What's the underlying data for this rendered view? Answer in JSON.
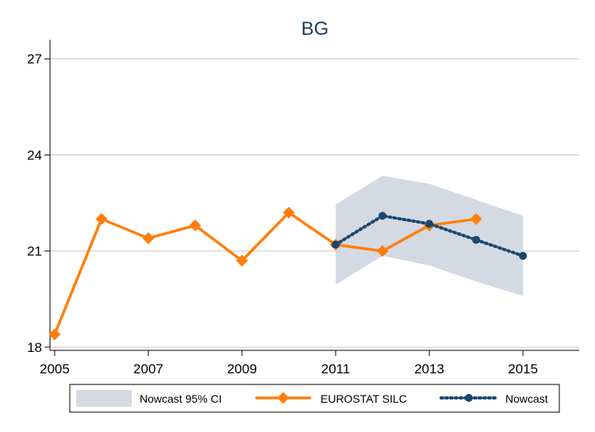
{
  "chart_data": {
    "type": "line",
    "title": "BG",
    "xlabel": "",
    "ylabel": "",
    "xlim": [
      2004.9,
      2016.2
    ],
    "ylim": [
      17.9,
      27.6
    ],
    "x_ticks": [
      2005,
      2007,
      2009,
      2011,
      2013,
      2015
    ],
    "x_tick_labels": [
      "2005",
      "2007",
      "2009",
      "2011",
      "2013",
      "2015"
    ],
    "y_ticks": [
      18,
      21,
      24,
      27
    ],
    "y_tick_labels": [
      "18",
      "21",
      "24",
      "27"
    ],
    "grid": true,
    "legend_position": "bottom",
    "series": [
      {
        "name": "EUROSTAT SILC",
        "style": "solid-diamond",
        "color": "#ff7f0e",
        "x": [
          2005,
          2006,
          2007,
          2008,
          2009,
          2010,
          2011,
          2012,
          2013,
          2014
        ],
        "y": [
          18.4,
          22.0,
          21.4,
          21.8,
          20.7,
          22.2,
          21.2,
          21.0,
          21.8,
          22.0
        ]
      },
      {
        "name": "Nowcast",
        "style": "dotted-circle",
        "color": "#1a476f",
        "x": [
          2011,
          2012,
          2013,
          2014,
          2015
        ],
        "y": [
          21.2,
          22.1,
          21.85,
          21.35,
          20.85
        ]
      }
    ],
    "band": {
      "name": "Nowcast 95% CI",
      "color": "#d3dae3",
      "x": [
        2011,
        2012,
        2013,
        2014,
        2015
      ],
      "lower": [
        19.95,
        20.85,
        20.55,
        20.05,
        19.6
      ],
      "upper": [
        22.45,
        23.35,
        23.1,
        22.6,
        22.1
      ]
    }
  }
}
